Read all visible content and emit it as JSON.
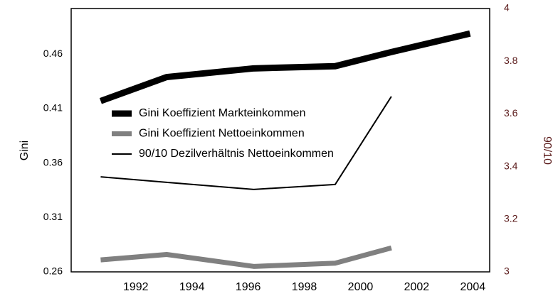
{
  "chart_data": {
    "type": "line",
    "x": [
      1990.75,
      1993.1,
      1996.2,
      1999.1,
      2001.1,
      2003.9
    ],
    "xlim": [
      1989.7,
      2004.6
    ],
    "xticks": [
      1992,
      1994,
      1996,
      1998,
      2000,
      2002,
      2004
    ],
    "ylabel": "Gini",
    "ylim": [
      0.26,
      0.502
    ],
    "yticks": [
      0.26,
      0.31,
      0.36,
      0.41,
      0.46
    ],
    "y2label": "90/10",
    "y2lim": [
      3,
      4
    ],
    "y2ticks": [
      3,
      3.2,
      3.4,
      3.6,
      3.8,
      4
    ],
    "series": [
      {
        "name": "Gini Koeffizient Markteinkommen",
        "color": "#000000",
        "values": [
          0.417,
          0.439,
          0.447,
          0.449,
          0.462,
          0.479
        ]
      },
      {
        "name": "Gini Koeffizient Nettoeinkommen",
        "color": "#808080",
        "values": [
          0.271,
          0.276,
          0.265,
          0.268,
          0.282,
          null
        ]
      },
      {
        "name": "90/10 Dezilverhältnis Nettoeinkommen",
        "color": "#000000",
        "axis": "y2",
        "values": [
          3.361,
          3.34,
          3.313,
          3.332,
          3.666,
          null
        ]
      }
    ]
  }
}
